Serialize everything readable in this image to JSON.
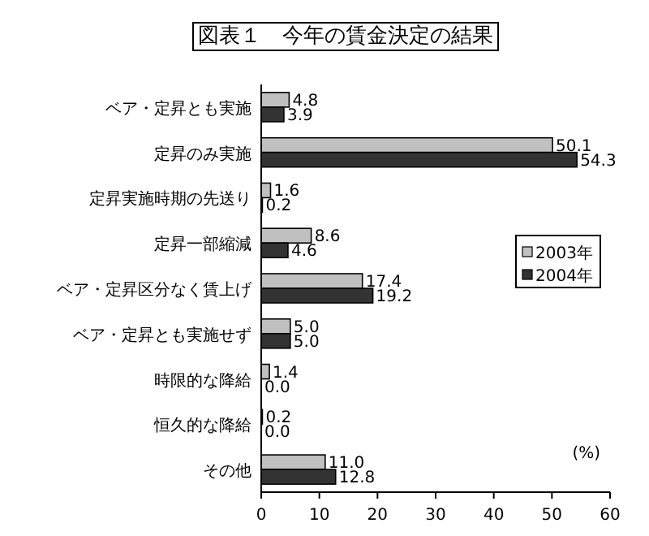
{
  "chart_data": {
    "type": "bar",
    "orientation": "horizontal",
    "title": "図表１　今年の賃金決定の結果",
    "categories": [
      "ベア・定昇とも実施",
      "定昇のみ実施",
      "定昇実施時期の先送り",
      "定昇一部縮減",
      "ベア・定昇区分なく賃上げ",
      "ベア・定昇とも実施せず",
      "時限的な降給",
      "恒久的な降給",
      "その他"
    ],
    "series": [
      {
        "name": "2003年",
        "color": "#c0c0c0",
        "values": [
          4.8,
          50.1,
          1.6,
          8.6,
          17.4,
          5.0,
          1.4,
          0.2,
          11.0
        ],
        "value_labels": [
          "4.8",
          "50.1",
          "1.6",
          "8.6",
          "17.4",
          "5.0",
          "1.4",
          "0.2",
          "11.0"
        ]
      },
      {
        "name": "2004年",
        "color": "#333333",
        "values": [
          3.9,
          54.3,
          0.2,
          4.6,
          19.2,
          5.0,
          0.0,
          0.0,
          12.8
        ],
        "value_labels": [
          "3.9",
          "54.3",
          "0.2",
          "4.6",
          "19.2",
          "5.0",
          "0.0",
          "0.0",
          "12.8"
        ]
      }
    ],
    "xlim": [
      0,
      60
    ],
    "xticks": [
      0,
      10,
      20,
      30,
      40,
      50,
      60
    ],
    "grid": false,
    "legend": "right",
    "annotations": [
      "(%)"
    ]
  }
}
